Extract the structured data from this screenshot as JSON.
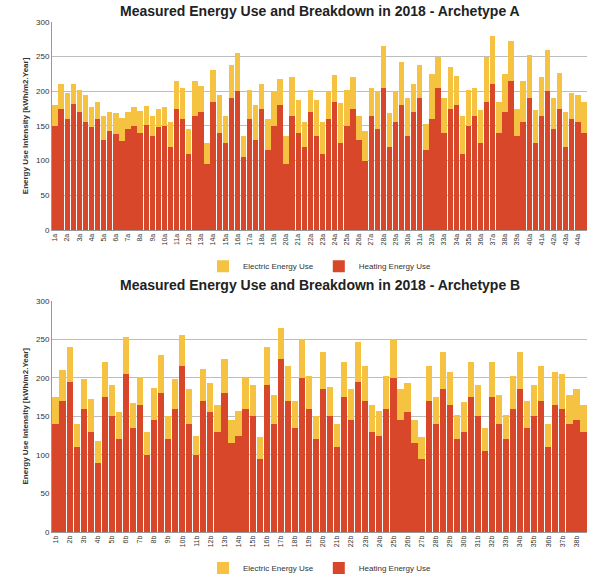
{
  "chart_data": [
    {
      "type": "bar",
      "title": "Measured Energy Use and Breakdown in 2018 - Archetype A",
      "y_label": "Energy Use Intensity [kWh/m2.Year]",
      "categories": [
        "1a",
        null,
        "2a",
        null,
        "3a",
        null,
        "4a",
        null,
        "5a",
        null,
        "6a",
        null,
        "7a",
        null,
        "8a",
        null,
        "9a",
        null,
        "10a",
        null,
        "11a",
        null,
        "12a",
        null,
        "13a",
        null,
        "14a",
        null,
        "15a",
        null,
        "16a",
        null,
        "17a",
        null,
        "18a",
        null,
        "19a",
        null,
        "20a",
        null,
        "21a",
        null,
        "22a",
        null,
        "23a",
        null,
        "24a",
        null,
        "25a",
        null,
        "26a",
        null,
        "27a",
        null,
        "28a",
        null,
        "29a",
        null,
        "30a",
        null,
        "31a",
        null,
        "32a",
        null,
        "33a",
        null,
        "34a",
        null,
        "35a",
        null,
        "36a",
        null,
        "37a",
        null,
        "38a",
        null,
        "39a",
        null,
        "40a",
        null,
        "41a",
        null,
        "42a",
        null,
        "43a",
        null,
        "44a",
        null
      ],
      "series": [
        {
          "name": "Heating Energy Use",
          "color": "#d9472b",
          "values": [
            150,
            175,
            160,
            182,
            170,
            155,
            148,
            160,
            130,
            142,
            138,
            128,
            145,
            150,
            140,
            152,
            135,
            148,
            150,
            120,
            175,
            160,
            110,
            165,
            170,
            95,
            185,
            140,
            125,
            190,
            200,
            105,
            160,
            130,
            175,
            115,
            150,
            180,
            95,
            165,
            140,
            120,
            170,
            135,
            110,
            160,
            185,
            125,
            150,
            175,
            130,
            100,
            165,
            145,
            205,
            120,
            155,
            180,
            135,
            170,
            190,
            115,
            160,
            205,
            140,
            175,
            180,
            110,
            150,
            165,
            125,
            185,
            210,
            140,
            170,
            215,
            135,
            155,
            190,
            125,
            165,
            200,
            145,
            175,
            120,
            160,
            155,
            140
          ]
        },
        {
          "name": "Electric Energy Use",
          "color": "#f5c242",
          "values": [
            30,
            35,
            38,
            28,
            32,
            40,
            30,
            25,
            35,
            28,
            30,
            33,
            25,
            28,
            32,
            27,
            30,
            26,
            28,
            35,
            40,
            45,
            35,
            50,
            38,
            30,
            45,
            55,
            40,
            48,
            55,
            30,
            42,
            50,
            35,
            45,
            50,
            38,
            40,
            55,
            48,
            35,
            32,
            52,
            45,
            40,
            38,
            58,
            52,
            45,
            35,
            42,
            40,
            55,
            60,
            48,
            45,
            62,
            55,
            40,
            48,
            38,
            65,
            45,
            50,
            60,
            42,
            55,
            52,
            40,
            48,
            65,
            70,
            45,
            55,
            58,
            40,
            60,
            62,
            48,
            55,
            60,
            45,
            52,
            50,
            38,
            40,
            45
          ]
        }
      ],
      "stacked": true,
      "ylim": [
        0,
        300
      ],
      "yticks": [
        0,
        50,
        100,
        150,
        200,
        250,
        300
      ],
      "grid": true,
      "legend": "bottom"
    },
    {
      "type": "bar",
      "title": "Measured Energy Use and Breakdown in 2018 - Archetype B",
      "y_label": "Energy Use Intensity [kWh/m2.Year]",
      "categories": [
        "1b",
        null,
        "2b",
        null,
        "3b",
        null,
        "4b",
        null,
        "5b",
        null,
        "6b",
        null,
        "7b",
        null,
        "8b",
        null,
        "9b",
        null,
        "10b",
        null,
        "11b",
        null,
        "12b",
        null,
        "13b",
        null,
        "14b",
        null,
        "15b",
        null,
        "16b",
        null,
        "17b",
        null,
        "18b",
        null,
        "19b",
        null,
        "20b",
        null,
        "21b",
        null,
        "22b",
        null,
        "23b",
        null,
        "24b",
        null,
        "25b",
        null,
        "26b",
        null,
        "27b",
        null,
        "28b",
        null,
        "29b",
        null,
        "30b",
        null,
        "31b",
        null,
        "32b",
        null,
        "33b",
        null,
        "34b",
        null,
        "35b",
        null,
        "36b",
        null,
        "37b",
        null,
        "38b",
        null
      ],
      "series": [
        {
          "name": "Heating Energy Use",
          "color": "#d9472b",
          "values": [
            140,
            170,
            195,
            110,
            160,
            130,
            90,
            175,
            150,
            120,
            205,
            135,
            165,
            100,
            145,
            180,
            120,
            160,
            215,
            140,
            100,
            170,
            155,
            130,
            180,
            115,
            125,
            160,
            150,
            95,
            190,
            140,
            225,
            170,
            135,
            200,
            160,
            120,
            185,
            150,
            110,
            175,
            145,
            195,
            170,
            130,
            125,
            160,
            200,
            145,
            155,
            115,
            95,
            170,
            140,
            185,
            165,
            120,
            130,
            175,
            150,
            105,
            175,
            140,
            120,
            160,
            185,
            135,
            150,
            170,
            110,
            165,
            160,
            140,
            145,
            130
          ]
        },
        {
          "name": "Electric Energy Use",
          "color": "#f5c242",
          "values": [
            35,
            40,
            45,
            30,
            38,
            42,
            28,
            45,
            40,
            35,
            48,
            32,
            36,
            30,
            42,
            50,
            30,
            38,
            40,
            45,
            25,
            42,
            38,
            35,
            45,
            30,
            32,
            40,
            40,
            28,
            50,
            38,
            40,
            45,
            35,
            50,
            42,
            30,
            48,
            38,
            30,
            45,
            40,
            52,
            45,
            35,
            32,
            42,
            50,
            40,
            38,
            30,
            28,
            45,
            35,
            48,
            42,
            32,
            38,
            45,
            40,
            30,
            45,
            38,
            32,
            42,
            48,
            35,
            40,
            45,
            30,
            42,
            45,
            38,
            40,
            35
          ]
        }
      ],
      "stacked": true,
      "ylim": [
        0,
        300
      ],
      "yticks": [
        0,
        50,
        100,
        150,
        200,
        250,
        300
      ],
      "grid": true,
      "legend": "bottom"
    }
  ]
}
